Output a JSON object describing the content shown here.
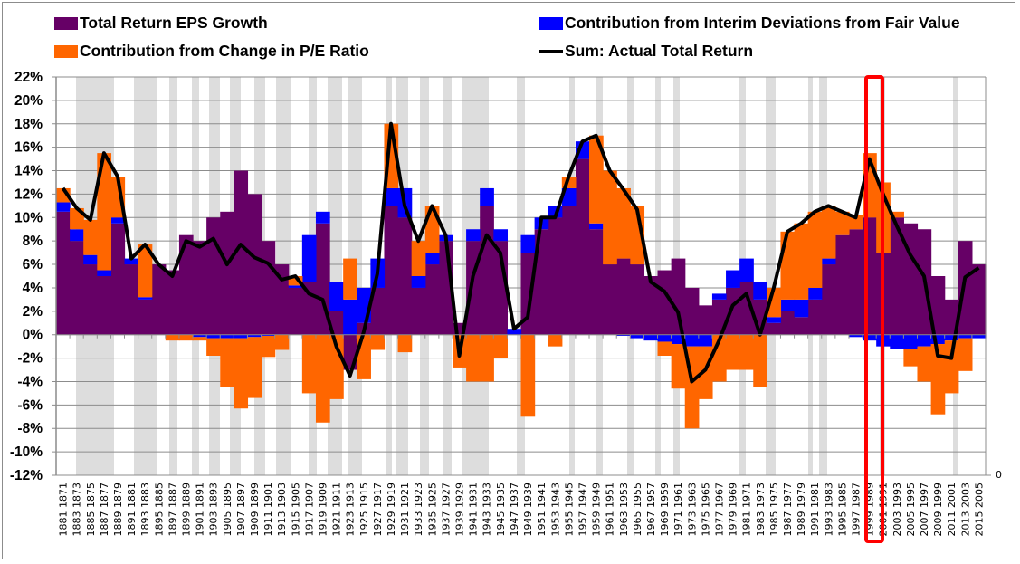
{
  "chart_data": {
    "type": "area",
    "title": "",
    "xlabel": "",
    "ylabel": "",
    "ylim": [
      -0.12,
      0.22
    ],
    "y_ticks": [
      "22%",
      "20%",
      "18%",
      "16%",
      "14%",
      "12%",
      "10%",
      "8%",
      "6%",
      "4%",
      "2%",
      "0%",
      "-2%",
      "-4%",
      "-6%",
      "-8%",
      "-10%",
      "-12%"
    ],
    "y_tick_values": [
      0.22,
      0.2,
      0.18,
      0.16,
      0.14,
      0.12,
      0.1,
      0.08,
      0.06,
      0.04,
      0.02,
      0,
      -0.02,
      -0.04,
      -0.06,
      -0.08,
      -0.1,
      -0.12
    ],
    "secondary_axis_label": "0",
    "grid": true,
    "legend_position": "top",
    "categories": [
      "1881 1871",
      "1883 1873",
      "1885 1875",
      "1887 1877",
      "1889 1879",
      "1891 1881",
      "1893 1883",
      "1895 1885",
      "1897 1887",
      "1899 1889",
      "1901 1891",
      "1903 1893",
      "1905 1895",
      "1907 1897",
      "1909 1899",
      "1911 1901",
      "1913 1903",
      "1915 1905",
      "1917 1907",
      "1919 1909",
      "1921 1911",
      "1923 1913",
      "1925 1915",
      "1927 1917",
      "1929 1919",
      "1931 1921",
      "1933 1923",
      "1935 1925",
      "1937 1927",
      "1939 1929",
      "1941 1931",
      "1943 1933",
      "1945 1935",
      "1947 1937",
      "1949 1939",
      "1951 1941",
      "1953 1943",
      "1955 1945",
      "1957 1947",
      "1959 1949",
      "1961 1951",
      "1963 1953",
      "1965 1955",
      "1967 1957",
      "1969 1959",
      "1971 1961",
      "1973 1963",
      "1975 1965",
      "1977 1967",
      "1979 1969",
      "1981 1971",
      "1983 1973",
      "1985 1975",
      "1987 1977",
      "1989 1979",
      "1991 1981",
      "1993 1983",
      "1995 1985",
      "1997 1987",
      "1999 1989",
      "2001 1991",
      "2003 1993",
      "2005 1995",
      "2007 1997",
      "2009 1999",
      "2011 2001",
      "2013 2003",
      "2015 2005"
    ],
    "series": [
      {
        "name": "Total Return EPS Growth",
        "color": "#660066",
        "kind": "area",
        "values": [
          0.105,
          0.08,
          0.06,
          0.05,
          0.095,
          0.06,
          0.03,
          0.06,
          0.055,
          0.085,
          0.08,
          0.1,
          0.105,
          0.14,
          0.12,
          0.08,
          0.06,
          0.04,
          0.045,
          0.095,
          0.02,
          -0.03,
          0.01,
          0.04,
          0.11,
          0.1,
          0.04,
          0.06,
          0.08,
          0.01,
          0.08,
          0.11,
          0.08,
          0.0,
          0.07,
          0.09,
          0.1,
          0.11,
          0.15,
          0.09,
          0.06,
          0.065,
          0.06,
          0.05,
          0.055,
          0.065,
          0.04,
          0.025,
          0.03,
          0.04,
          0.045,
          0.03,
          0.01,
          0.02,
          0.015,
          0.03,
          0.06,
          0.085,
          0.09,
          0.1,
          0.07,
          0.1,
          0.095,
          0.09,
          0.05,
          0.03,
          0.08,
          0.06
        ]
      },
      {
        "name": "Contribution from Interim Deviations from Fair Value",
        "color": "#0000FF",
        "kind": "area",
        "values": [
          0.008,
          0.01,
          0.008,
          0.005,
          0.005,
          0.005,
          0.002,
          0.0,
          0.0,
          0.0,
          -0.002,
          -0.003,
          -0.003,
          -0.003,
          -0.002,
          -0.001,
          0.0,
          0.002,
          0.04,
          0.01,
          0.025,
          0.03,
          0.03,
          0.025,
          0.015,
          0.025,
          0.01,
          0.01,
          0.005,
          0.0,
          0.01,
          0.015,
          0.01,
          0.005,
          0.015,
          0.01,
          0.01,
          0.015,
          0.015,
          0.005,
          0.0,
          -0.001,
          -0.003,
          -0.005,
          -0.006,
          -0.008,
          -0.01,
          -0.01,
          0.005,
          0.015,
          0.02,
          0.015,
          0.005,
          0.01,
          0.015,
          0.01,
          0.005,
          0.0,
          -0.002,
          -0.005,
          -0.01,
          -0.012,
          -0.012,
          -0.01,
          -0.008,
          -0.005,
          -0.003,
          -0.003
        ]
      },
      {
        "name": "Contribution from Change in P/E Ratio",
        "color": "#FF6600",
        "kind": "area",
        "values": [
          0.012,
          0.018,
          0.03,
          0.1,
          0.035,
          0.0,
          0.045,
          0.0,
          -0.005,
          -0.005,
          -0.003,
          -0.015,
          -0.042,
          -0.06,
          -0.052,
          -0.018,
          -0.013,
          0.008,
          -0.05,
          -0.075,
          -0.055,
          0.035,
          -0.038,
          -0.013,
          0.055,
          -0.015,
          0.03,
          0.04,
          0.0,
          -0.028,
          -0.04,
          -0.04,
          -0.02,
          0.0,
          -0.07,
          0.0,
          -0.01,
          0.01,
          0.0,
          0.075,
          0.08,
          0.06,
          0.05,
          0.0,
          -0.012,
          -0.038,
          -0.07,
          -0.045,
          -0.04,
          -0.03,
          -0.03,
          -0.045,
          0.025,
          0.058,
          0.065,
          0.065,
          0.045,
          0.02,
          0.012,
          0.055,
          0.06,
          0.005,
          -0.015,
          -0.03,
          -0.06,
          -0.045,
          -0.028,
          0.0
        ]
      },
      {
        "name": "Sum: Actual Total Return",
        "color": "#000000",
        "kind": "line",
        "values": [
          0.125,
          0.108,
          0.098,
          0.155,
          0.135,
          0.065,
          0.077,
          0.06,
          0.05,
          0.08,
          0.075,
          0.082,
          0.06,
          0.077,
          0.066,
          0.061,
          0.047,
          0.05,
          0.035,
          0.03,
          -0.01,
          -0.035,
          0.002,
          0.052,
          0.18,
          0.11,
          0.08,
          0.11,
          0.085,
          -0.018,
          0.05,
          0.085,
          0.07,
          0.005,
          0.015,
          0.1,
          0.1,
          0.135,
          0.165,
          0.17,
          0.14,
          0.124,
          0.107,
          0.045,
          0.037,
          0.019,
          -0.04,
          -0.03,
          -0.005,
          0.025,
          0.035,
          -0.0,
          0.04,
          0.088,
          0.095,
          0.105,
          0.11,
          0.105,
          0.1,
          0.15,
          0.12,
          0.093,
          0.068,
          0.05,
          -0.018,
          -0.02,
          0.049,
          0.057
        ]
      }
    ],
    "recession_bands_shown": true,
    "highlight_box_category": "1999 1989"
  },
  "legend": {
    "eps": "Total Return EPS Growth",
    "pe": "Contribution from Change in P/E Ratio",
    "dev": "Contribution from Interim Deviations from Fair Value",
    "sum": "Sum: Actual Total Return"
  },
  "colors": {
    "eps": "#660066",
    "pe": "#FF6600",
    "dev": "#0000FF",
    "sum": "#000000",
    "band": "#DDDDDD",
    "highlight": "#FF0000",
    "grid": "#8C8C8C"
  }
}
